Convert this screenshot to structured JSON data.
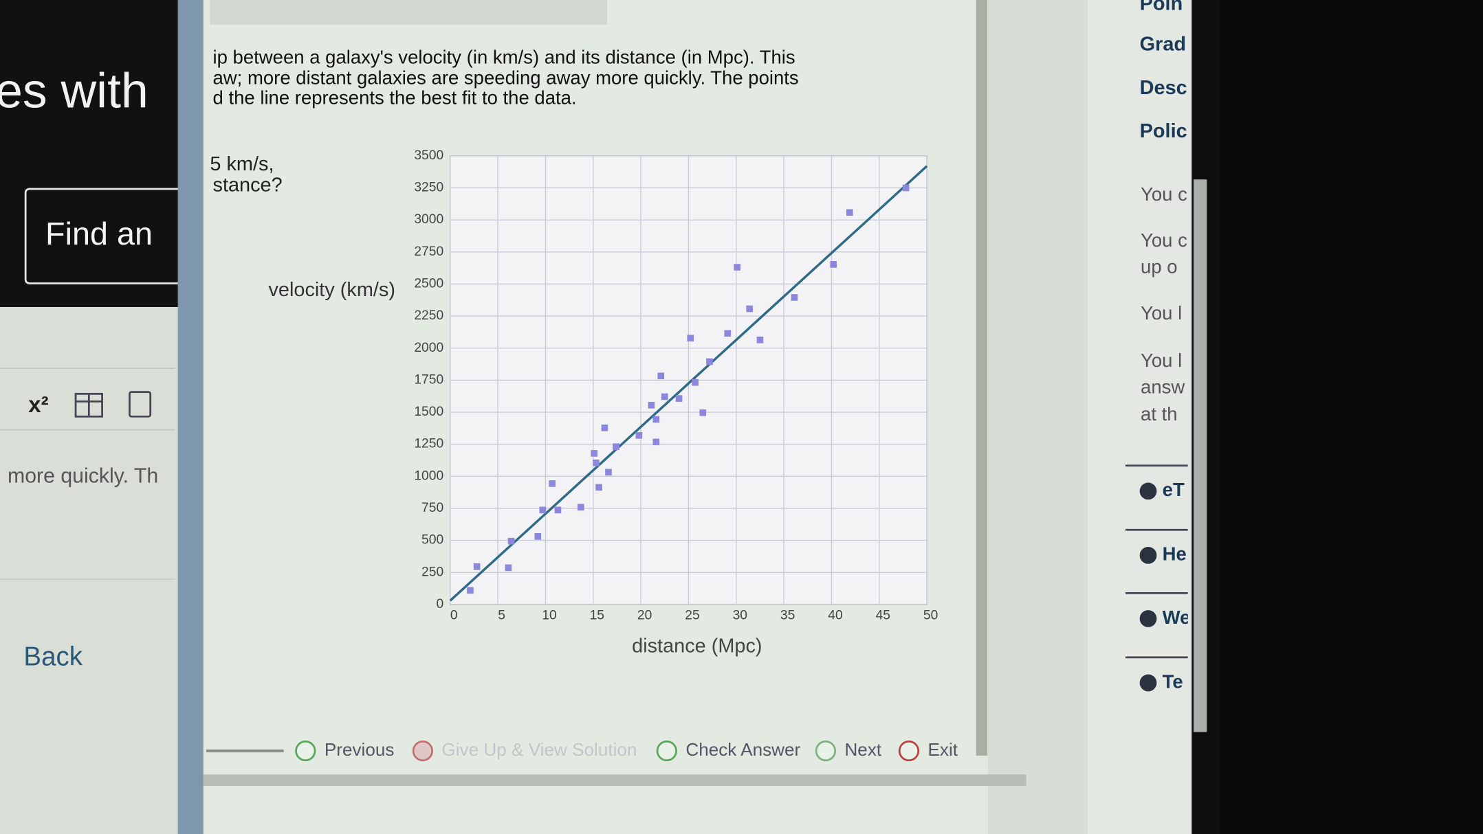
{
  "left_panel": {
    "heading": "es with",
    "button": "Find an",
    "toolbar_label": "x²",
    "text": "more quickly. Th",
    "back": "Back"
  },
  "question": {
    "paragraph": [
      "ip between a galaxy's velocity (in km/s) and its distance (in Mpc). This",
      "aw; more distant galaxies are speeding away more quickly. The points",
      "d the line represents the best fit to the data."
    ],
    "prompt": [
      "5 km/s,",
      "stance?"
    ]
  },
  "chart_data": {
    "type": "scatter",
    "x_label": "distance (Mpc)",
    "y_label": "velocity (km/s)",
    "x": [
      2.1,
      2.8,
      6.1,
      6.4,
      9.2,
      9.7,
      10.7,
      11.3,
      13.7,
      15.1,
      15.3,
      15.6,
      16.2,
      16.6,
      17.4,
      19.8,
      21.1,
      21.6,
      21.6,
      22.1,
      22.5,
      24.0,
      25.2,
      25.7,
      26.5,
      27.2,
      29.1,
      30.1,
      31.4,
      32.5,
      36.1,
      40.2,
      41.9,
      47.8
    ],
    "values": [
      110,
      295,
      287,
      494,
      531,
      737,
      943,
      737,
      759,
      1179,
      1105,
      914,
      1378,
      1032,
      1231,
      1319,
      1555,
      1444,
      1268,
      1783,
      1621,
      1607,
      2078,
      1732,
      1496,
      1894,
      2115,
      2631,
      2307,
      2064,
      2395,
      2653,
      3058,
      3250
    ],
    "color": "#8c86dc",
    "fit_line": {
      "x": [
        0,
        50
      ],
      "values": [
        30,
        3420
      ],
      "color": "#2f6a86"
    },
    "xlim": [
      0,
      50
    ],
    "ylim": [
      0,
      3500
    ],
    "xticks": [
      0,
      5,
      10,
      15,
      20,
      25,
      30,
      35,
      40,
      45,
      50
    ],
    "yticks": [
      0,
      250,
      500,
      750,
      1000,
      1250,
      1500,
      1750,
      2000,
      2250,
      2500,
      2750,
      3000,
      3250,
      3500
    ],
    "grid": true
  },
  "buttons": [
    "Previous",
    "Give Up & View Solution",
    "Check Answer",
    "Next",
    "Exit"
  ],
  "sidebar": {
    "headings": [
      "Poin",
      "Grad",
      "Desc",
      "Polic"
    ],
    "lines": [
      "You c",
      "You c",
      "up o",
      "You l",
      "You l",
      "answ",
      "at th"
    ],
    "links": [
      "eT",
      "He",
      "We",
      "Te"
    ]
  }
}
